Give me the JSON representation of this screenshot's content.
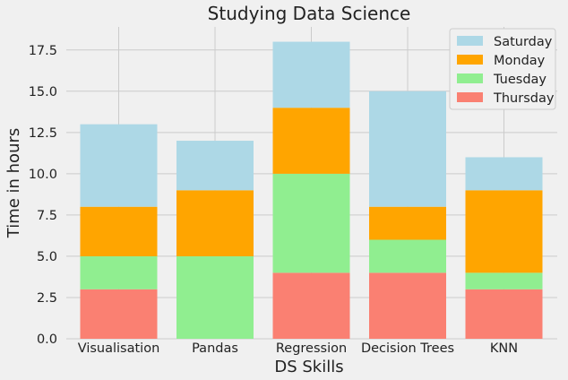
{
  "chart_data": {
    "type": "bar",
    "stacked": true,
    "title": "Studying Data Science",
    "xlabel": "DS Skills",
    "ylabel": "Time in hours",
    "categories": [
      "Visualisation",
      "Pandas",
      "Regression",
      "Decision Trees",
      "KNN"
    ],
    "series": [
      {
        "name": "Thursday",
        "values": [
          3,
          0,
          4,
          4,
          3
        ],
        "color": "#fa8072"
      },
      {
        "name": "Tuesday",
        "values": [
          2,
          5,
          6,
          2,
          1
        ],
        "color": "#90ee90"
      },
      {
        "name": "Monday",
        "values": [
          3,
          4,
          4,
          2,
          5
        ],
        "color": "#ffa500"
      },
      {
        "name": "Saturday",
        "values": [
          5,
          3,
          4,
          7,
          2
        ],
        "color": "#add8e6"
      }
    ],
    "ylim": [
      0,
      18.9
    ],
    "yticks": [
      "0.0",
      "2.5",
      "5.0",
      "7.5",
      "10.0",
      "12.5",
      "15.0",
      "17.5"
    ],
    "grid": true,
    "legend": {
      "position": "top-right",
      "order": [
        "Saturday",
        "Monday",
        "Tuesday",
        "Thursday"
      ]
    }
  }
}
